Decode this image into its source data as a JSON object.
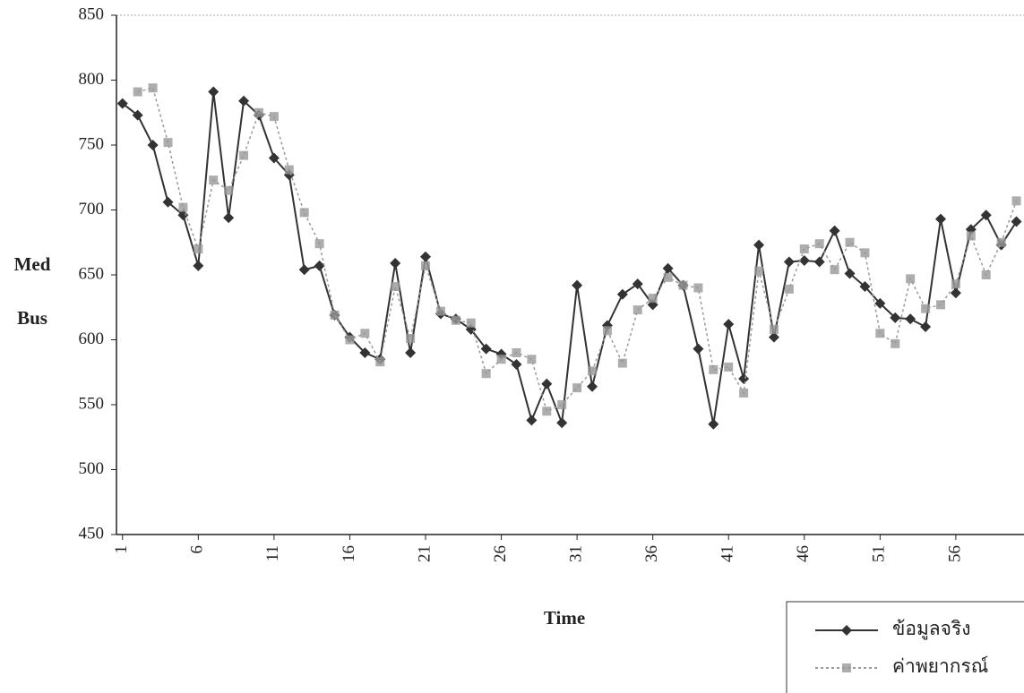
{
  "chart_data": {
    "type": "line",
    "xlabel": "Time",
    "ylabel": "Med Bus",
    "x": [
      1,
      2,
      3,
      4,
      5,
      6,
      7,
      8,
      9,
      10,
      11,
      12,
      13,
      14,
      15,
      16,
      17,
      18,
      19,
      20,
      21,
      22,
      23,
      24,
      25,
      26,
      27,
      28,
      29,
      30,
      31,
      32,
      33,
      34,
      35,
      36,
      37,
      38,
      39,
      40,
      41,
      42,
      43,
      44,
      45,
      46,
      47,
      48,
      49,
      50,
      51,
      52,
      53,
      54,
      55,
      56,
      57,
      58,
      59,
      60
    ],
    "series": [
      {
        "name": "ข้อมูลจริง",
        "color": "#333333",
        "marker": "diamond",
        "values": [
          782,
          773,
          750,
          706,
          696,
          657,
          791,
          694,
          784,
          773,
          740,
          727,
          654,
          657,
          619,
          602,
          590,
          585,
          659,
          590,
          664,
          620,
          616,
          608,
          593,
          589,
          581,
          538,
          566,
          536,
          642,
          564,
          611,
          635,
          643,
          627,
          655,
          642,
          593,
          535,
          612,
          570,
          673,
          602,
          660,
          661,
          660,
          684,
          651,
          641,
          628,
          617,
          616,
          610,
          693,
          636,
          685,
          696,
          673,
          691
        ]
      },
      {
        "name": "ค่าพยากรณ์",
        "color": "#999999",
        "marker": "square",
        "values": [
          null,
          791,
          794,
          752,
          702,
          670,
          723,
          715,
          742,
          775,
          772,
          731,
          698,
          674,
          619,
          600,
          605,
          583,
          641,
          601,
          657,
          622,
          615,
          613,
          574,
          585,
          590,
          585,
          545,
          550,
          563,
          576,
          607,
          582,
          623,
          632,
          648,
          642,
          640,
          577,
          579,
          559,
          653,
          608,
          639,
          670,
          674,
          654,
          675,
          667,
          605,
          597,
          647,
          624,
          627,
          643,
          680,
          650,
          675,
          707
        ]
      }
    ],
    "xlim": [
      0.6,
      60.5
    ],
    "xticks": [
      1,
      6,
      11,
      16,
      21,
      26,
      31,
      36,
      41,
      46,
      51,
      56
    ],
    "ylim": [
      450,
      850
    ],
    "yticks": [
      450,
      500,
      550,
      600,
      650,
      700,
      750,
      800,
      850
    ]
  }
}
